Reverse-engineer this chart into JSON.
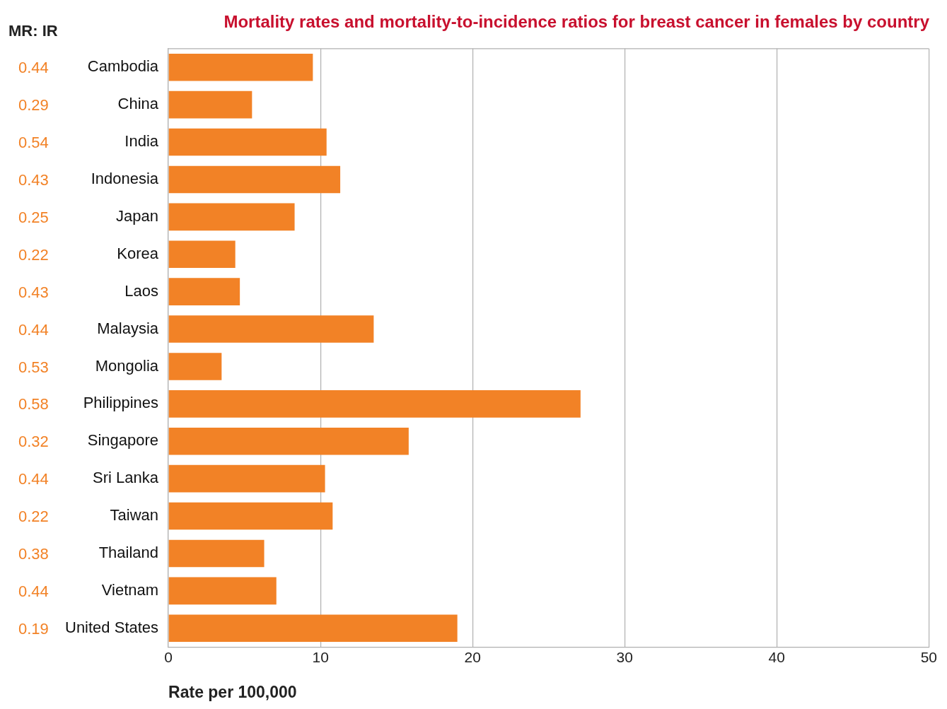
{
  "chart_data": {
    "type": "bar",
    "orientation": "horizontal",
    "title": "Mortality rates and mortality-to-incidence ratios for breast cancer in females by country",
    "xlabel": "Rate per 100,000",
    "categories": [
      "Cambodia",
      "China",
      "India",
      "Indonesia",
      "Japan",
      "Korea",
      "Laos",
      "Malaysia",
      "Mongolia",
      "Philippines",
      "Singapore",
      "Sri Lanka",
      "Taiwan",
      "Thailand",
      "Vietnam",
      "United States"
    ],
    "values": [
      9.5,
      5.5,
      10.4,
      11.3,
      8.3,
      4.4,
      4.7,
      13.5,
      3.5,
      27.1,
      15.8,
      10.3,
      10.8,
      6.3,
      7.1,
      19.0
    ],
    "color": "#f28226",
    "xlim": [
      0,
      50
    ],
    "xticks": [
      0,
      10,
      20,
      30,
      40,
      50
    ],
    "grid": "x",
    "legend": false,
    "annotations": [
      "MR: IR",
      "0.44",
      "0.29",
      "0.54",
      "0.43",
      "0.25",
      "0.22",
      "0.43",
      "0.44",
      "0.53",
      "0.58",
      "0.32",
      "0.44",
      "0.22",
      "0.38",
      "0.44",
      "0.19"
    ]
  }
}
